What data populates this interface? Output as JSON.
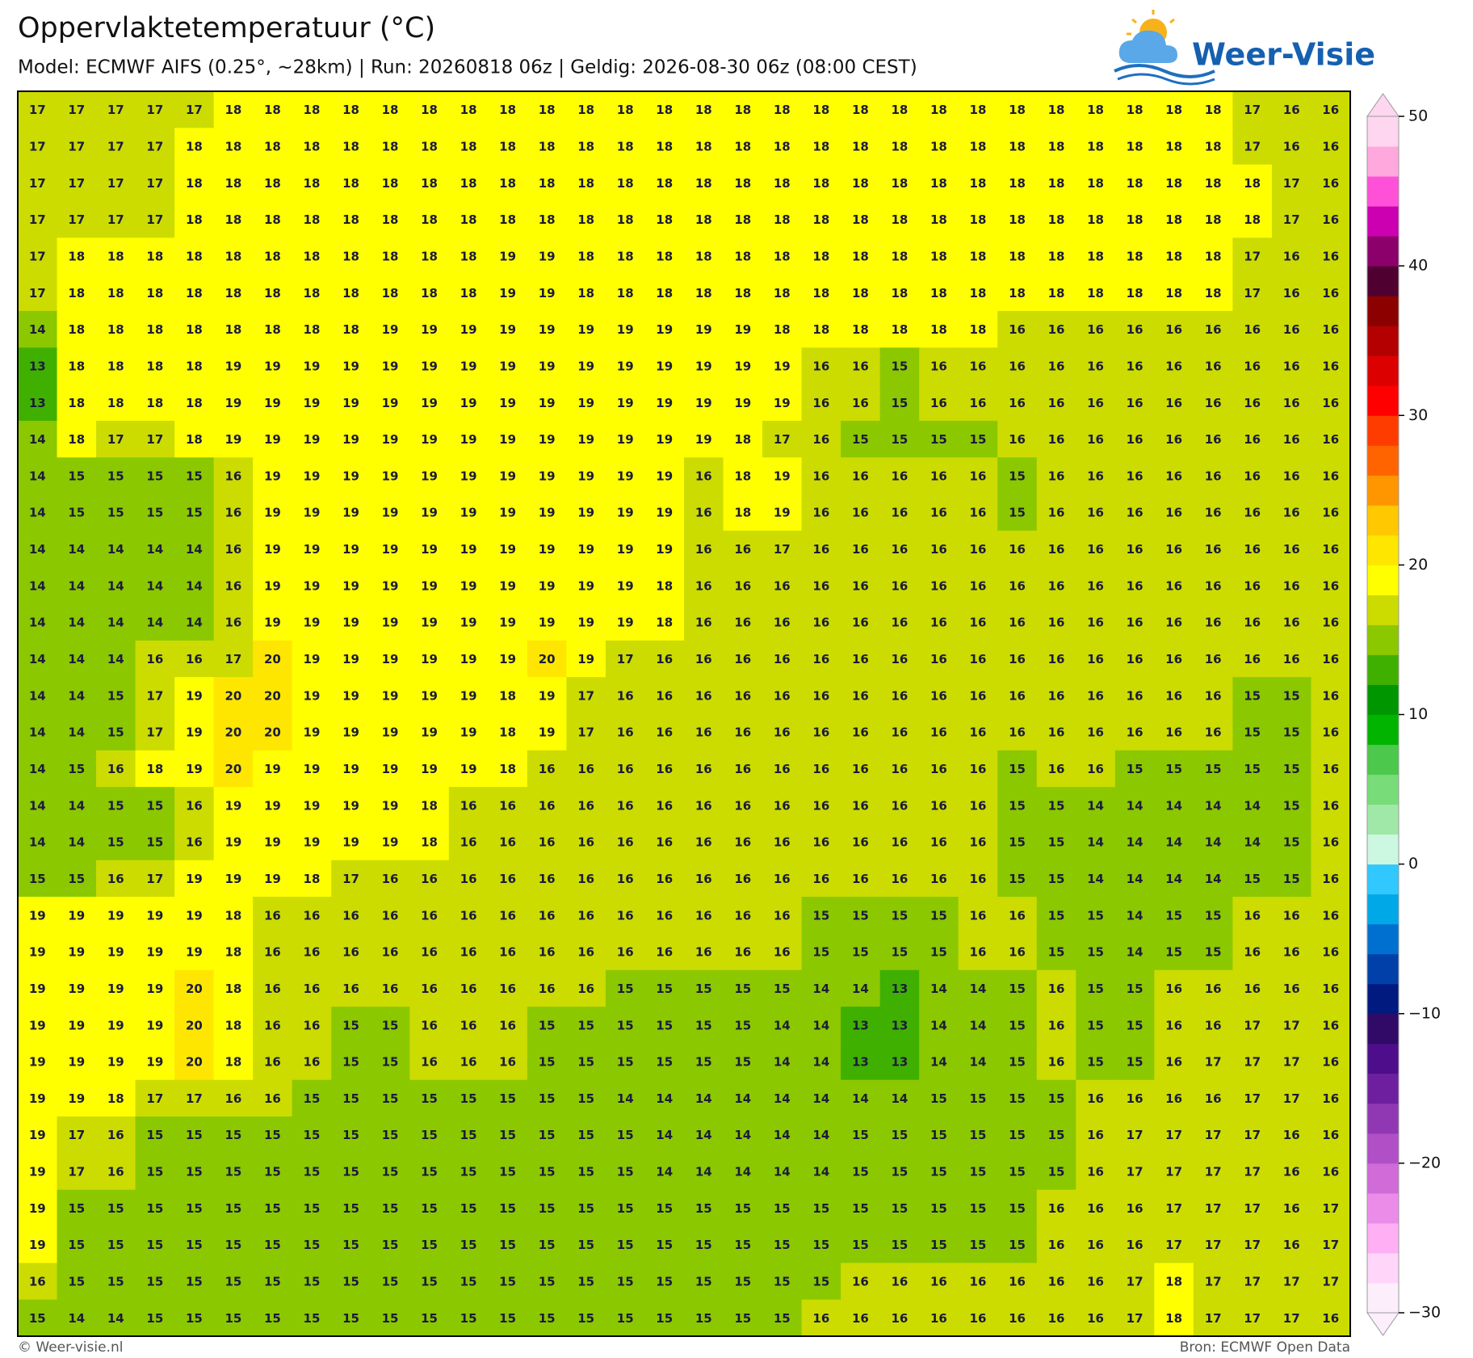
{
  "header": {
    "title": "Oppervlaktetemperatuur (°C)",
    "subtitle": "Model: ECMWF AIFS (0.25°, ~28km)  |  Run: 20260818 06z  |  Geldig: 2026-08-30 06z (08:00 CEST)"
  },
  "logo": "Weer-Visie",
  "map": {
    "rows": [
      [
        17,
        17,
        17,
        17,
        17,
        18,
        18,
        18,
        18,
        18,
        18,
        18,
        18,
        18,
        18,
        18,
        18,
        18,
        18,
        18,
        18,
        18,
        18,
        18,
        18,
        18,
        18,
        18,
        18,
        18,
        18,
        17,
        16,
        16
      ],
      [
        17,
        17,
        17,
        17,
        18,
        18,
        18,
        18,
        18,
        18,
        18,
        18,
        18,
        18,
        18,
        18,
        18,
        18,
        18,
        18,
        18,
        18,
        18,
        18,
        18,
        18,
        18,
        18,
        18,
        18,
        18,
        17,
        16,
        16
      ],
      [
        17,
        17,
        17,
        17,
        18,
        18,
        18,
        18,
        18,
        18,
        18,
        18,
        18,
        18,
        18,
        18,
        18,
        18,
        18,
        18,
        18,
        18,
        18,
        18,
        18,
        18,
        18,
        18,
        18,
        18,
        18,
        18,
        17,
        16
      ],
      [
        17,
        17,
        17,
        17,
        18,
        18,
        18,
        18,
        18,
        18,
        18,
        18,
        18,
        18,
        18,
        18,
        18,
        18,
        18,
        18,
        18,
        18,
        18,
        18,
        18,
        18,
        18,
        18,
        18,
        18,
        18,
        18,
        17,
        16
      ],
      [
        17,
        18,
        18,
        18,
        18,
        18,
        18,
        18,
        18,
        18,
        18,
        18,
        19,
        19,
        18,
        18,
        18,
        18,
        18,
        18,
        18,
        18,
        18,
        18,
        18,
        18,
        18,
        18,
        18,
        18,
        18,
        17,
        16,
        16
      ],
      [
        17,
        18,
        18,
        18,
        18,
        18,
        18,
        18,
        18,
        18,
        18,
        18,
        19,
        19,
        18,
        18,
        18,
        18,
        18,
        18,
        18,
        18,
        18,
        18,
        18,
        18,
        18,
        18,
        18,
        18,
        18,
        17,
        16,
        16
      ],
      [
        14,
        18,
        18,
        18,
        18,
        18,
        18,
        18,
        18,
        19,
        19,
        19,
        19,
        19,
        19,
        19,
        19,
        19,
        19,
        18,
        18,
        18,
        18,
        18,
        18,
        16,
        16,
        16,
        16,
        16,
        16,
        16,
        16,
        16
      ],
      [
        13,
        18,
        18,
        18,
        18,
        19,
        19,
        19,
        19,
        19,
        19,
        19,
        19,
        19,
        19,
        19,
        19,
        19,
        19,
        19,
        16,
        16,
        15,
        16,
        16,
        16,
        16,
        16,
        16,
        16,
        16,
        16,
        16,
        16
      ],
      [
        13,
        18,
        18,
        18,
        18,
        19,
        19,
        19,
        19,
        19,
        19,
        19,
        19,
        19,
        19,
        19,
        19,
        19,
        19,
        19,
        16,
        16,
        15,
        16,
        16,
        16,
        16,
        16,
        16,
        16,
        16,
        16,
        16,
        16
      ],
      [
        14,
        18,
        17,
        17,
        18,
        19,
        19,
        19,
        19,
        19,
        19,
        19,
        19,
        19,
        19,
        19,
        19,
        19,
        18,
        17,
        16,
        15,
        15,
        15,
        15,
        16,
        16,
        16,
        16,
        16,
        16,
        16,
        16,
        16
      ],
      [
        14,
        15,
        15,
        15,
        15,
        16,
        19,
        19,
        19,
        19,
        19,
        19,
        19,
        19,
        19,
        19,
        19,
        16,
        18,
        19,
        16,
        16,
        16,
        16,
        16,
        15,
        16,
        16,
        16,
        16,
        16,
        16,
        16,
        16
      ],
      [
        14,
        15,
        15,
        15,
        15,
        16,
        19,
        19,
        19,
        19,
        19,
        19,
        19,
        19,
        19,
        19,
        19,
        16,
        18,
        19,
        16,
        16,
        16,
        16,
        16,
        15,
        16,
        16,
        16,
        16,
        16,
        16,
        16,
        16
      ],
      [
        14,
        14,
        14,
        14,
        14,
        16,
        19,
        19,
        19,
        19,
        19,
        19,
        19,
        19,
        19,
        19,
        19,
        16,
        16,
        17,
        16,
        16,
        16,
        16,
        16,
        16,
        16,
        16,
        16,
        16,
        16,
        16,
        16,
        16
      ],
      [
        14,
        14,
        14,
        14,
        14,
        16,
        19,
        19,
        19,
        19,
        19,
        19,
        19,
        19,
        19,
        19,
        18,
        16,
        16,
        16,
        16,
        16,
        16,
        16,
        16,
        16,
        16,
        16,
        16,
        16,
        16,
        16,
        16,
        16
      ],
      [
        14,
        14,
        14,
        14,
        14,
        16,
        19,
        19,
        19,
        19,
        19,
        19,
        19,
        19,
        19,
        19,
        18,
        16,
        16,
        16,
        16,
        16,
        16,
        16,
        16,
        16,
        16,
        16,
        16,
        16,
        16,
        16,
        16,
        16
      ],
      [
        14,
        14,
        14,
        16,
        16,
        17,
        20,
        19,
        19,
        19,
        19,
        19,
        19,
        20,
        19,
        17,
        16,
        16,
        16,
        16,
        16,
        16,
        16,
        16,
        16,
        16,
        16,
        16,
        16,
        16,
        16,
        16,
        16,
        16
      ],
      [
        14,
        14,
        15,
        17,
        19,
        20,
        20,
        19,
        19,
        19,
        19,
        19,
        18,
        19,
        17,
        16,
        16,
        16,
        16,
        16,
        16,
        16,
        16,
        16,
        16,
        16,
        16,
        16,
        16,
        16,
        16,
        15,
        15,
        16
      ],
      [
        14,
        14,
        15,
        17,
        19,
        20,
        20,
        19,
        19,
        19,
        19,
        19,
        18,
        19,
        17,
        16,
        16,
        16,
        16,
        16,
        16,
        16,
        16,
        16,
        16,
        16,
        16,
        16,
        16,
        16,
        16,
        15,
        15,
        16
      ],
      [
        14,
        15,
        16,
        18,
        19,
        20,
        19,
        19,
        19,
        19,
        19,
        19,
        18,
        16,
        16,
        16,
        16,
        16,
        16,
        16,
        16,
        16,
        16,
        16,
        16,
        15,
        16,
        16,
        15,
        15,
        15,
        15,
        15,
        16
      ],
      [
        14,
        14,
        15,
        15,
        16,
        19,
        19,
        19,
        19,
        19,
        18,
        16,
        16,
        16,
        16,
        16,
        16,
        16,
        16,
        16,
        16,
        16,
        16,
        16,
        16,
        15,
        15,
        14,
        14,
        14,
        14,
        14,
        15,
        16
      ],
      [
        14,
        14,
        15,
        15,
        16,
        19,
        19,
        19,
        19,
        19,
        18,
        16,
        16,
        16,
        16,
        16,
        16,
        16,
        16,
        16,
        16,
        16,
        16,
        16,
        16,
        15,
        15,
        14,
        14,
        14,
        14,
        14,
        15,
        16
      ],
      [
        15,
        15,
        16,
        17,
        19,
        19,
        19,
        18,
        17,
        16,
        16,
        16,
        16,
        16,
        16,
        16,
        16,
        16,
        16,
        16,
        16,
        16,
        16,
        16,
        16,
        15,
        15,
        14,
        14,
        14,
        14,
        15,
        15,
        16
      ],
      [
        19,
        19,
        19,
        19,
        19,
        18,
        16,
        16,
        16,
        16,
        16,
        16,
        16,
        16,
        16,
        16,
        16,
        16,
        16,
        16,
        15,
        15,
        15,
        15,
        16,
        16,
        15,
        15,
        14,
        15,
        15,
        16,
        16,
        16
      ],
      [
        19,
        19,
        19,
        19,
        19,
        18,
        16,
        16,
        16,
        16,
        16,
        16,
        16,
        16,
        16,
        16,
        16,
        16,
        16,
        16,
        15,
        15,
        15,
        15,
        16,
        16,
        15,
        15,
        14,
        15,
        15,
        16,
        16,
        16
      ],
      [
        19,
        19,
        19,
        19,
        20,
        18,
        16,
        16,
        16,
        16,
        16,
        16,
        16,
        16,
        16,
        15,
        15,
        15,
        15,
        15,
        14,
        14,
        13,
        14,
        14,
        15,
        16,
        15,
        15,
        16,
        16,
        16,
        16,
        16
      ],
      [
        19,
        19,
        19,
        19,
        20,
        18,
        16,
        16,
        15,
        15,
        16,
        16,
        16,
        15,
        15,
        15,
        15,
        15,
        15,
        14,
        14,
        13,
        13,
        14,
        14,
        15,
        16,
        15,
        15,
        16,
        16,
        17,
        17,
        16
      ],
      [
        19,
        19,
        19,
        19,
        20,
        18,
        16,
        16,
        15,
        15,
        16,
        16,
        16,
        15,
        15,
        15,
        15,
        15,
        15,
        14,
        14,
        13,
        13,
        14,
        14,
        15,
        16,
        15,
        15,
        16,
        17,
        17,
        17,
        16
      ],
      [
        19,
        19,
        18,
        17,
        17,
        16,
        16,
        15,
        15,
        15,
        15,
        15,
        15,
        15,
        15,
        14,
        14,
        14,
        14,
        14,
        14,
        14,
        14,
        15,
        15,
        15,
        15,
        16,
        16,
        16,
        16,
        17,
        17,
        16
      ],
      [
        19,
        17,
        16,
        15,
        15,
        15,
        15,
        15,
        15,
        15,
        15,
        15,
        15,
        15,
        15,
        15,
        14,
        14,
        14,
        14,
        14,
        15,
        15,
        15,
        15,
        15,
        15,
        16,
        17,
        17,
        17,
        17,
        16,
        16
      ],
      [
        19,
        17,
        16,
        15,
        15,
        15,
        15,
        15,
        15,
        15,
        15,
        15,
        15,
        15,
        15,
        15,
        14,
        14,
        14,
        14,
        14,
        15,
        15,
        15,
        15,
        15,
        15,
        16,
        17,
        17,
        17,
        17,
        16,
        16
      ],
      [
        19,
        15,
        15,
        15,
        15,
        15,
        15,
        15,
        15,
        15,
        15,
        15,
        15,
        15,
        15,
        15,
        15,
        15,
        15,
        15,
        15,
        15,
        15,
        15,
        15,
        15,
        16,
        16,
        16,
        17,
        17,
        17,
        16,
        17
      ],
      [
        19,
        15,
        15,
        15,
        15,
        15,
        15,
        15,
        15,
        15,
        15,
        15,
        15,
        15,
        15,
        15,
        15,
        15,
        15,
        15,
        15,
        15,
        15,
        15,
        15,
        15,
        16,
        16,
        16,
        17,
        17,
        17,
        16,
        17
      ],
      [
        16,
        15,
        15,
        15,
        15,
        15,
        15,
        15,
        15,
        15,
        15,
        15,
        15,
        15,
        15,
        15,
        15,
        15,
        15,
        15,
        15,
        16,
        16,
        16,
        16,
        16,
        16,
        16,
        17,
        18,
        17,
        17,
        17,
        17
      ],
      [
        15,
        14,
        14,
        15,
        15,
        15,
        15,
        15,
        15,
        15,
        15,
        15,
        15,
        15,
        15,
        15,
        15,
        15,
        15,
        15,
        16,
        16,
        16,
        16,
        16,
        16,
        16,
        16,
        17,
        18,
        17,
        17,
        17,
        16
      ]
    ]
  },
  "colorbar": {
    "lim": [
      -30,
      50
    ],
    "ticks": [
      {
        "value": -30,
        "label": "−30"
      },
      {
        "value": -20,
        "label": "−20"
      },
      {
        "value": -10,
        "label": "−10"
      },
      0,
      10,
      20,
      30,
      40,
      50
    ],
    "colors": [
      "#fdeefc",
      "#ffd6fa",
      "#ffb0f5",
      "#ec8ce9",
      "#d06bd8",
      "#b04fc6",
      "#9038b4",
      "#6e1fa0",
      "#4e0e8c",
      "#300a66",
      "#001a80",
      "#0040a8",
      "#0070d0",
      "#00a8e8",
      "#30c8ff",
      "#ccf7e0",
      "#a0e8a8",
      "#78dc78",
      "#4cc84c",
      "#00b400",
      "#009600",
      "#40b000",
      "#8bc800",
      "#ccdc00",
      "#ffff00",
      "#ffe600",
      "#ffc800",
      "#ff9600",
      "#ff6400",
      "#ff3c00",
      "#ff0000",
      "#dc0000",
      "#b40000",
      "#8c0000",
      "#500030",
      "#8c006c",
      "#cc00b0",
      "#ff50d8",
      "#ffa8de",
      "#ffd6ef"
    ]
  },
  "footer": {
    "left": "© Weer-visie.nl",
    "right": "Bron: ECMWF Open Data"
  }
}
